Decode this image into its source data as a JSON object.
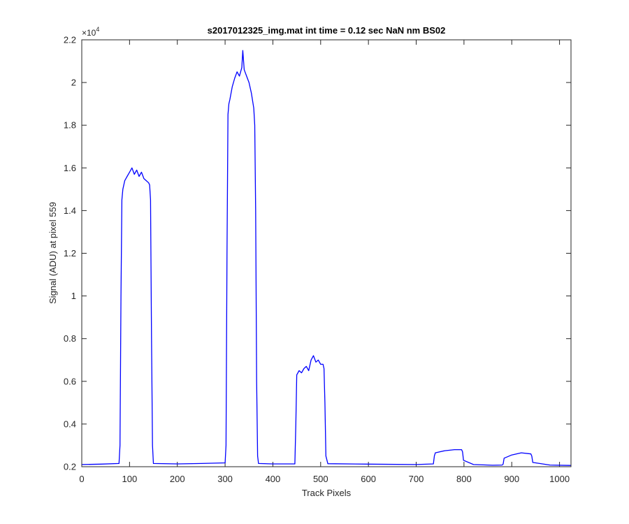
{
  "chart_data": {
    "type": "line",
    "title": "s2017012325_img.mat int time = 0.12 sec  NaN nm BS02",
    "xlabel": "Track Pixels",
    "ylabel": "Signal (ADU) at pixel 559",
    "y_exponent": {
      "base": "×10",
      "power": "4"
    },
    "xlim": [
      0,
      1024
    ],
    "ylim": [
      0.2,
      2.2
    ],
    "xticks": [
      "0",
      "100",
      "200",
      "300",
      "400",
      "500",
      "600",
      "700",
      "800",
      "900",
      "1000"
    ],
    "yticks": [
      "0.2",
      "0.4",
      "0.6",
      "0.8",
      "1",
      "1.2",
      "1.4",
      "1.6",
      "1.8",
      "2",
      "2.2"
    ],
    "grid": false,
    "line_color": "#0000ff",
    "series": [
      {
        "x": [
          0,
          40,
          78,
          80,
          82,
          84,
          86,
          90,
          95,
          100,
          105,
          110,
          115,
          120,
          125,
          130,
          135,
          140,
          142,
          144,
          146,
          148,
          150,
          200,
          250,
          300,
          302,
          304,
          306,
          308,
          310,
          315,
          320,
          325,
          330,
          335,
          337,
          340,
          345,
          350,
          355,
          360,
          362,
          364,
          366,
          368,
          370,
          400,
          440,
          446,
          448,
          450,
          455,
          460,
          465,
          470,
          475,
          480,
          485,
          490,
          495,
          500,
          505,
          507,
          509,
          511,
          515,
          600,
          700,
          736,
          738,
          740,
          760,
          780,
          795,
          797,
          799,
          820,
          860,
          880,
          882,
          884,
          900,
          920,
          940,
          942,
          944,
          980,
          1024
        ],
        "y": [
          0.21,
          0.212,
          0.215,
          0.3,
          1.0,
          1.45,
          1.5,
          1.54,
          1.56,
          1.58,
          1.6,
          1.57,
          1.59,
          1.56,
          1.58,
          1.55,
          1.54,
          1.53,
          1.52,
          1.45,
          0.8,
          0.3,
          0.215,
          0.213,
          0.215,
          0.218,
          0.3,
          1.2,
          1.85,
          1.9,
          1.92,
          1.98,
          2.02,
          2.05,
          2.03,
          2.07,
          2.15,
          2.06,
          2.03,
          2.0,
          1.95,
          1.88,
          1.8,
          1.4,
          0.6,
          0.25,
          0.215,
          0.213,
          0.213,
          0.213,
          0.4,
          0.63,
          0.65,
          0.64,
          0.66,
          0.67,
          0.65,
          0.7,
          0.72,
          0.69,
          0.7,
          0.68,
          0.68,
          0.66,
          0.5,
          0.25,
          0.214,
          0.212,
          0.21,
          0.213,
          0.25,
          0.265,
          0.275,
          0.28,
          0.28,
          0.27,
          0.23,
          0.21,
          0.207,
          0.208,
          0.212,
          0.24,
          0.255,
          0.265,
          0.26,
          0.25,
          0.22,
          0.208,
          0.206
        ]
      }
    ]
  }
}
